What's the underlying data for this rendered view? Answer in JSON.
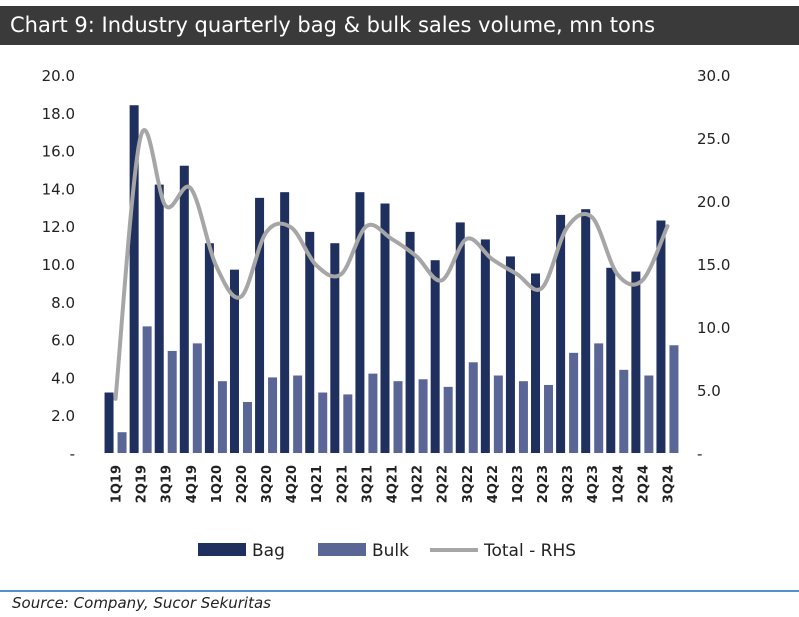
{
  "header": {
    "title": "Chart 9:  Industry quarterly bag & bulk sales volume, mn tons"
  },
  "footer": {
    "source": "Source: Company, Sucor Sekuritas"
  },
  "chart_data": {
    "type": "bar",
    "title": "Chart 9:  Industry quarterly bag & bulk sales volume, mn tons",
    "categories": [
      "1Q19",
      "2Q19",
      "3Q19",
      "4Q19",
      "1Q20",
      "2Q20",
      "3Q20",
      "4Q20",
      "1Q21",
      "2Q21",
      "3Q21",
      "4Q21",
      "1Q22",
      "2Q22",
      "3Q22",
      "4Q22",
      "1Q23",
      "2Q23",
      "3Q23",
      "4Q23",
      "1Q24",
      "2Q24",
      "3Q24"
    ],
    "series": [
      {
        "name": "Bag",
        "type": "bar",
        "axis": "left",
        "color": "#1f2f5e",
        "values": [
          3.2,
          18.4,
          14.2,
          15.2,
          11.1,
          9.7,
          13.5,
          13.8,
          11.7,
          11.1,
          13.8,
          13.2,
          11.7,
          10.2,
          12.2,
          11.3,
          10.4,
          9.5,
          12.6,
          12.9,
          9.8,
          9.6,
          12.3
        ]
      },
      {
        "name": "Bulk",
        "type": "bar",
        "axis": "left",
        "color": "#5a6796",
        "values": [
          1.1,
          6.7,
          5.4,
          5.8,
          3.8,
          2.7,
          4.0,
          4.1,
          3.2,
          3.1,
          4.2,
          3.8,
          3.9,
          3.5,
          4.8,
          4.1,
          3.8,
          3.6,
          5.3,
          5.8,
          4.4,
          4.1,
          5.7
        ]
      },
      {
        "name": "Total - RHS",
        "type": "line",
        "axis": "right",
        "color": "#a6a6a6",
        "values": [
          4.3,
          25.1,
          19.6,
          21.0,
          14.9,
          12.4,
          17.5,
          17.9,
          14.9,
          14.2,
          18.0,
          17.0,
          15.6,
          13.7,
          17.0,
          15.4,
          14.2,
          13.1,
          17.9,
          18.7,
          14.2,
          13.7,
          18.0
        ]
      }
    ],
    "y_left": {
      "ylim": [
        0,
        20
      ],
      "ticks": [
        "-",
        "2.0",
        "4.0",
        "6.0",
        "8.0",
        "10.0",
        "12.0",
        "14.0",
        "16.0",
        "18.0",
        "20.0"
      ]
    },
    "y_right": {
      "ylim": [
        0,
        30
      ],
      "ticks": [
        "-",
        "5.0",
        "10.0",
        "15.0",
        "20.0",
        "25.0",
        "30.0"
      ]
    },
    "legend": [
      {
        "label": "Bag",
        "color": "#1f2f5e",
        "kind": "bar"
      },
      {
        "label": "Bulk",
        "color": "#5a6796",
        "kind": "bar"
      },
      {
        "label": "Total - RHS",
        "color": "#a6a6a6",
        "kind": "line"
      }
    ],
    "legend_position": "bottom",
    "grid": false
  }
}
